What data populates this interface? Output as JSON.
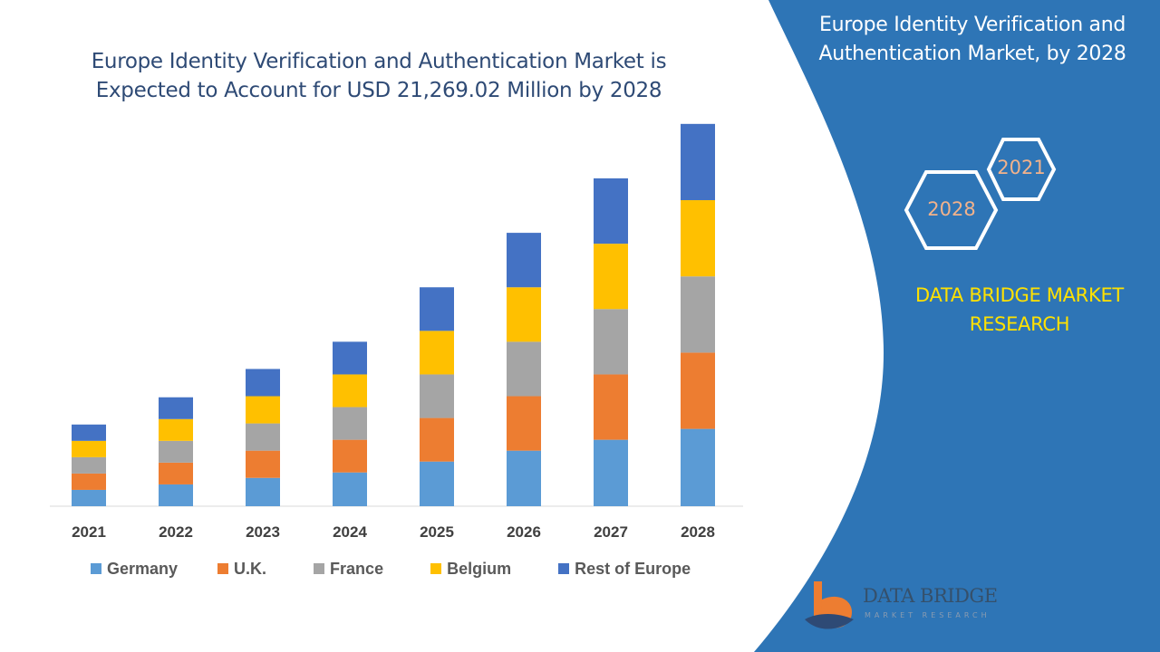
{
  "header": {
    "title_line1": "Europe Identity Verification and Authentication Market is",
    "title_line2": "Expected to Account for USD 21,269.02 Million by 2028"
  },
  "panel": {
    "title_line1": "Europe Identity Verification and",
    "title_line2": "Authentication Market, by 2028",
    "hex_year_back": "2021",
    "hex_year_front": "2028",
    "brand_line1": "DATA BRIDGE MARKET",
    "brand_line2": "RESEARCH",
    "panel_color": "#2e75b6",
    "brand_color": "#ffe100"
  },
  "logo": {
    "name": "DATA BRIDGE",
    "subtitle": "MARKET RESEARCH"
  },
  "chart_data": {
    "type": "bar",
    "stacked": true,
    "categories": [
      "2021",
      "2022",
      "2023",
      "2024",
      "2025",
      "2026",
      "2027",
      "2028"
    ],
    "series": [
      {
        "name": "Germany",
        "color": "#5b9bd5",
        "values": [
          15,
          20,
          26,
          31,
          41,
          51,
          61,
          71
        ]
      },
      {
        "name": "U.K.",
        "color": "#ed7d31",
        "values": [
          15,
          20,
          25,
          30,
          40,
          50,
          60,
          70
        ]
      },
      {
        "name": "France",
        "color": "#a5a5a5",
        "values": [
          15,
          20,
          25,
          30,
          40,
          50,
          60,
          70
        ]
      },
      {
        "name": "Belgium",
        "color": "#ffc000",
        "values": [
          15,
          20,
          25,
          30,
          40,
          50,
          60,
          70
        ]
      },
      {
        "name": "Rest of Europe",
        "color": "#4472c4",
        "values": [
          15,
          20,
          25,
          30,
          40,
          50,
          60,
          70
        ]
      }
    ],
    "ylim": [
      0,
      360
    ],
    "grid": false,
    "legend_position": "bottom"
  }
}
